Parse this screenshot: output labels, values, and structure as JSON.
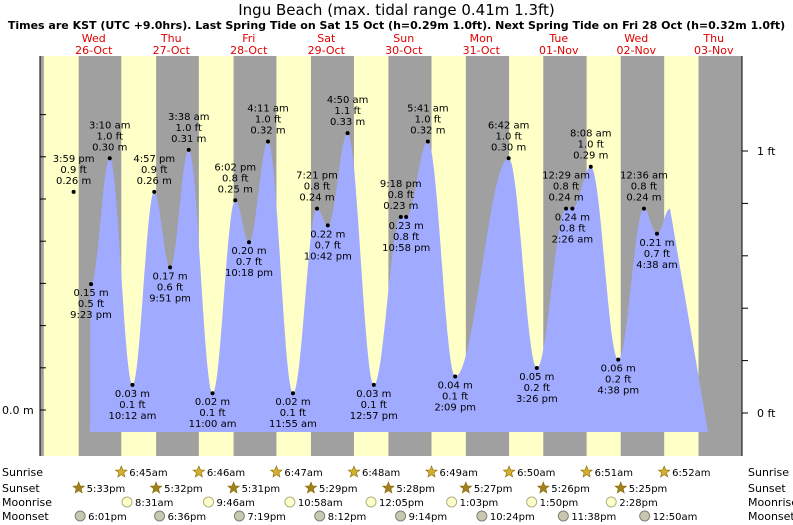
{
  "chart_data": {
    "type": "area",
    "title": "Ingu Beach (max. tidal range 0.41m 1.3ft)",
    "subtitle": "Times are KST (UTC +9.0hrs). Last Spring Tide on Sat 15 Oct (h=0.29m 1.0ft). Next Spring Tide on Fri 28 Oct (h=0.32m 1.0ft)",
    "yaxis_left": [
      {
        "label": "0.0 m",
        "value": 0
      }
    ],
    "yaxis_right": [
      {
        "label": "0 ft",
        "value_ft": 0
      },
      {
        "label": "1 ft",
        "value_ft": 1
      }
    ],
    "ylim_m": [
      -0.03,
      0.42
    ],
    "days": [
      {
        "dow": "Wed",
        "date": "26-Oct"
      },
      {
        "dow": "Thu",
        "date": "27-Oct"
      },
      {
        "dow": "Fri",
        "date": "28-Oct"
      },
      {
        "dow": "Sat",
        "date": "29-Oct"
      },
      {
        "dow": "Sun",
        "date": "30-Oct"
      },
      {
        "dow": "Mon",
        "date": "31-Oct"
      },
      {
        "dow": "Tue",
        "date": "01-Nov"
      },
      {
        "dow": "Wed",
        "date": "02-Nov"
      },
      {
        "dow": "Thu",
        "date": "03-Nov"
      }
    ],
    "tides": [
      {
        "type": "high",
        "day": 0,
        "time": "3:59 pm",
        "m": "0.26 m",
        "ft": "0.9 ft",
        "value": 0.26
      },
      {
        "type": "low",
        "day": 0,
        "time": "9:23 pm",
        "m": "0.15 m",
        "ft": "0.5 ft",
        "value": 0.15
      },
      {
        "type": "high",
        "day": 1,
        "time": "3:10 am",
        "m": "0.30 m",
        "ft": "1.0 ft",
        "value": 0.3
      },
      {
        "type": "low",
        "day": 1,
        "time": "10:12 am",
        "m": "0.03 m",
        "ft": "0.1 ft",
        "value": 0.03
      },
      {
        "type": "high",
        "day": 1,
        "time": "4:57 pm",
        "m": "0.26 m",
        "ft": "0.9 ft",
        "value": 0.26
      },
      {
        "type": "low",
        "day": 1,
        "time": "9:51 pm",
        "m": "0.17 m",
        "ft": "0.6 ft",
        "value": 0.17
      },
      {
        "type": "high",
        "day": 2,
        "time": "3:38 am",
        "m": "0.31 m",
        "ft": "1.0 ft",
        "value": 0.31
      },
      {
        "type": "low",
        "day": 2,
        "time": "11:00 am",
        "m": "0.02 m",
        "ft": "0.1 ft",
        "value": 0.02
      },
      {
        "type": "high",
        "day": 2,
        "time": "6:02 pm",
        "m": "0.25 m",
        "ft": "0.8 ft",
        "value": 0.25
      },
      {
        "type": "low",
        "day": 2,
        "time": "10:18 pm",
        "m": "0.20 m",
        "ft": "0.7 ft",
        "value": 0.2
      },
      {
        "type": "high",
        "day": 3,
        "time": "4:11 am",
        "m": "0.32 m",
        "ft": "1.0 ft",
        "value": 0.32
      },
      {
        "type": "low",
        "day": 3,
        "time": "11:55 am",
        "m": "0.02 m",
        "ft": "0.1 ft",
        "value": 0.02
      },
      {
        "type": "high",
        "day": 3,
        "time": "7:21 pm",
        "m": "0.24 m",
        "ft": "0.8 ft",
        "value": 0.24
      },
      {
        "type": "low",
        "day": 3,
        "time": "10:42 pm",
        "m": "0.22 m",
        "ft": "0.7 ft",
        "value": 0.22
      },
      {
        "type": "high",
        "day": 4,
        "time": "4:50 am",
        "m": "0.33 m",
        "ft": "1.1 ft",
        "value": 0.33
      },
      {
        "type": "low",
        "day": 4,
        "time": "12:57 pm",
        "m": "0.03 m",
        "ft": "0.1 ft",
        "value": 0.03
      },
      {
        "type": "high",
        "day": 4,
        "time": "9:18 pm",
        "m": "0.23 m",
        "ft": "0.8 ft",
        "value": 0.23
      },
      {
        "type": "low",
        "day": 4,
        "time": "10:58 pm",
        "m": "0.23 m",
        "ft": "0.8 ft",
        "value": 0.23
      },
      {
        "type": "high",
        "day": 5,
        "time": "5:41 am",
        "m": "0.32 m",
        "ft": "1.0 ft",
        "value": 0.32
      },
      {
        "type": "low",
        "day": 5,
        "time": "2:09 pm",
        "m": "0.04 m",
        "ft": "0.1 ft",
        "value": 0.04
      },
      {
        "type": "high",
        "day": 6,
        "time": "6:42 am",
        "m": "0.30 m",
        "ft": "1.0 ft",
        "value": 0.3
      },
      {
        "type": "low",
        "day": 6,
        "time": "3:26 pm",
        "m": "0.05 m",
        "ft": "0.2 ft",
        "value": 0.05
      },
      {
        "type": "high",
        "day": 7,
        "time": "12:29 am",
        "m": "0.24 m",
        "ft": "0.8 ft",
        "value": 0.24
      },
      {
        "type": "low",
        "day": 7,
        "time": "2:26 am",
        "m": "0.24 m",
        "ft": "0.8 ft",
        "value": 0.24
      },
      {
        "type": "high",
        "day": 7,
        "time": "8:08 am",
        "m": "0.29 m",
        "ft": "1.0 ft",
        "value": 0.29
      },
      {
        "type": "low",
        "day": 7,
        "time": "4:38 pm",
        "m": "0.06 m",
        "ft": "0.2 ft",
        "value": 0.06
      },
      {
        "type": "high",
        "day": 8,
        "time": "12:36 am",
        "m": "0.24 m",
        "ft": "0.8 ft",
        "value": 0.24
      },
      {
        "type": "low",
        "day": 8,
        "time": "4:38 am",
        "m": "0.21 m",
        "ft": "0.7 ft",
        "value": 0.21
      }
    ],
    "sun_moon": {
      "rows": [
        "Sunrise",
        "Sunset",
        "Moonrise",
        "Moonset"
      ],
      "sunrise": [
        {
          "day": 1,
          "time": "6:45am"
        },
        {
          "day": 2,
          "time": "6:46am"
        },
        {
          "day": 3,
          "time": "6:47am"
        },
        {
          "day": 4,
          "time": "6:48am"
        },
        {
          "day": 5,
          "time": "6:49am"
        },
        {
          "day": 6,
          "time": "6:50am"
        },
        {
          "day": 7,
          "time": "6:51am"
        },
        {
          "day": 8,
          "time": "6:52am"
        }
      ],
      "sunset": [
        {
          "day": 0,
          "time": "5:33pm"
        },
        {
          "day": 1,
          "time": "5:32pm"
        },
        {
          "day": 2,
          "time": "5:31pm"
        },
        {
          "day": 3,
          "time": "5:29pm"
        },
        {
          "day": 4,
          "time": "5:28pm"
        },
        {
          "day": 5,
          "time": "5:27pm"
        },
        {
          "day": 6,
          "time": "5:26pm"
        },
        {
          "day": 7,
          "time": "5:25pm"
        }
      ],
      "moonrise": [
        {
          "day": 1,
          "time": "8:31am"
        },
        {
          "day": 2,
          "time": "9:46am"
        },
        {
          "day": 3,
          "time": "10:58am"
        },
        {
          "day": 4,
          "time": "12:05pm"
        },
        {
          "day": 5,
          "time": "1:03pm"
        },
        {
          "day": 6,
          "time": "1:50pm"
        },
        {
          "day": 7,
          "time": "2:28pm"
        }
      ],
      "moonset": [
        {
          "day": 0,
          "time": "6:01pm"
        },
        {
          "day": 1,
          "time": "6:36pm"
        },
        {
          "day": 2,
          "time": "7:19pm"
        },
        {
          "day": 3,
          "time": "8:12pm"
        },
        {
          "day": 4,
          "time": "9:14pm"
        },
        {
          "day": 5,
          "time": "10:24pm"
        },
        {
          "day": 6,
          "time": "11:38pm"
        },
        {
          "day": 8,
          "time": "12:50am"
        }
      ]
    },
    "colors": {
      "day": "#ffffc8",
      "night": "#a0a0a0",
      "water": "#a0aaff",
      "day_label": "#e00000",
      "outer": "#ffffff"
    }
  }
}
